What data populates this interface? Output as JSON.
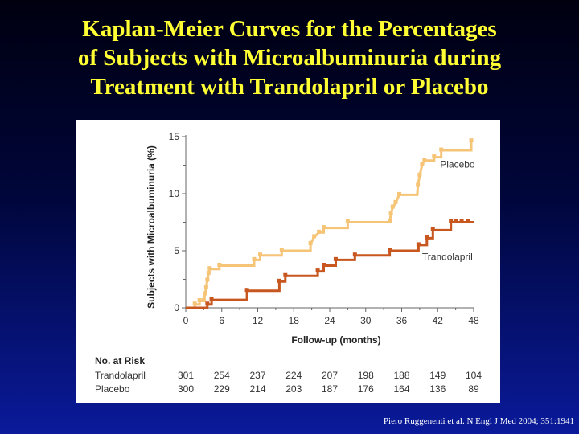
{
  "slide": {
    "title_lines": [
      "Kaplan-Meier Curves for the Percentages",
      "of Subjects with Microalbuminuria during",
      "Treatment with Trandolapril or Placebo"
    ],
    "citation": "Piero Ruggenenti et al. N Engl J Med 2004; 351:1941"
  },
  "colors": {
    "placebo": "#f6c477",
    "trandolapril": "#c8571f",
    "title": "#ffff33"
  },
  "chart_data": {
    "type": "line",
    "title": "",
    "xlabel": "Follow-up (months)",
    "ylabel": "Subjects with Microalbuminuria (%)",
    "xlim": [
      0,
      48
    ],
    "ylim": [
      0,
      15
    ],
    "xticks": [
      0,
      6,
      12,
      18,
      24,
      30,
      36,
      42,
      48
    ],
    "yticks": [
      0,
      5,
      10,
      15
    ],
    "grid": false,
    "series": [
      {
        "name": "Placebo",
        "color": "#f6c477",
        "points": [
          [
            0,
            0
          ],
          [
            1.5,
            0
          ],
          [
            1.5,
            0.3
          ],
          [
            2.3,
            0.3
          ],
          [
            2.3,
            0.6
          ],
          [
            3,
            0.6
          ],
          [
            3.2,
            1.2
          ],
          [
            3.4,
            1.8
          ],
          [
            3.6,
            2.4
          ],
          [
            3.8,
            3.0
          ],
          [
            4,
            3.4
          ],
          [
            5.6,
            3.4
          ],
          [
            5.6,
            3.7
          ],
          [
            11.4,
            3.7
          ],
          [
            11.4,
            4.2
          ],
          [
            12.4,
            4.2
          ],
          [
            12.4,
            4.6
          ],
          [
            16,
            4.6
          ],
          [
            16,
            5.0
          ],
          [
            20.8,
            5.0
          ],
          [
            20.8,
            5.6
          ],
          [
            21.4,
            6.2
          ],
          [
            22.2,
            6.6
          ],
          [
            23,
            6.6
          ],
          [
            23,
            7.0
          ],
          [
            27,
            7.0
          ],
          [
            27,
            7.5
          ],
          [
            34,
            7.5
          ],
          [
            34.2,
            8.2
          ],
          [
            34.5,
            8.8
          ],
          [
            35,
            9.2
          ],
          [
            35.6,
            9.9
          ],
          [
            38.6,
            9.9
          ],
          [
            38.7,
            10.7
          ],
          [
            39,
            11.6
          ],
          [
            39.4,
            12.5
          ],
          [
            39.8,
            12.9
          ],
          [
            41.4,
            12.9
          ],
          [
            41.4,
            13.2
          ],
          [
            42.6,
            13.2
          ],
          [
            42.6,
            13.8
          ],
          [
            47.6,
            13.8
          ],
          [
            47.6,
            14.6
          ],
          [
            47.8,
            14.6
          ]
        ],
        "censor_x": [
          1.5,
          2.3,
          3,
          3.2,
          3.4,
          3.6,
          3.8,
          4,
          5.6,
          11.4,
          12.4,
          16,
          20.8,
          21.4,
          22.2,
          23,
          27,
          34,
          34.2,
          34.5,
          35,
          35.6,
          38.7,
          39,
          39.4,
          39.8,
          41.4,
          42.6,
          47.6
        ]
      },
      {
        "name": "Trandolapril",
        "color": "#c8571f",
        "points": [
          [
            0,
            0
          ],
          [
            3.6,
            0
          ],
          [
            3.6,
            0.3
          ],
          [
            4.3,
            0.3
          ],
          [
            4.3,
            0.7
          ],
          [
            10.2,
            0.7
          ],
          [
            10.2,
            1.5
          ],
          [
            15.6,
            1.5
          ],
          [
            15.6,
            2.3
          ],
          [
            16.6,
            2.3
          ],
          [
            16.6,
            2.8
          ],
          [
            22,
            2.8
          ],
          [
            22,
            3.2
          ],
          [
            23,
            3.2
          ],
          [
            23,
            3.7
          ],
          [
            25,
            3.7
          ],
          [
            25,
            4.2
          ],
          [
            28.2,
            4.2
          ],
          [
            28.2,
            4.6
          ],
          [
            34,
            4.6
          ],
          [
            34,
            5.0
          ],
          [
            38.8,
            5.0
          ],
          [
            38.8,
            5.5
          ],
          [
            40.2,
            5.5
          ],
          [
            40.2,
            6.1
          ],
          [
            41.2,
            6.1
          ],
          [
            41.2,
            6.8
          ],
          [
            44.2,
            6.8
          ],
          [
            44.2,
            7.5
          ],
          [
            48,
            7.5
          ]
        ],
        "censor_x": [
          3.6,
          4.3,
          10.2,
          15.6,
          16.6,
          22,
          23,
          25,
          28.2,
          34,
          38.8,
          40.2,
          41.2,
          44.2,
          45,
          46,
          47
        ]
      }
    ],
    "series_labels": [
      "Placebo",
      "Trandolapril"
    ],
    "risk_table": {
      "title": "No. at Risk",
      "timepoints": [
        0,
        6,
        12,
        18,
        24,
        30,
        36,
        42,
        48
      ],
      "rows": [
        {
          "label": "Trandolapril",
          "values": [
            "301",
            "254",
            "237",
            "224",
            "207",
            "198",
            "188",
            "149",
            "104"
          ]
        },
        {
          "label": "Placebo",
          "values": [
            "300",
            "229",
            "214",
            "203",
            "187",
            "176",
            "164",
            "136",
            "89"
          ]
        }
      ]
    }
  }
}
